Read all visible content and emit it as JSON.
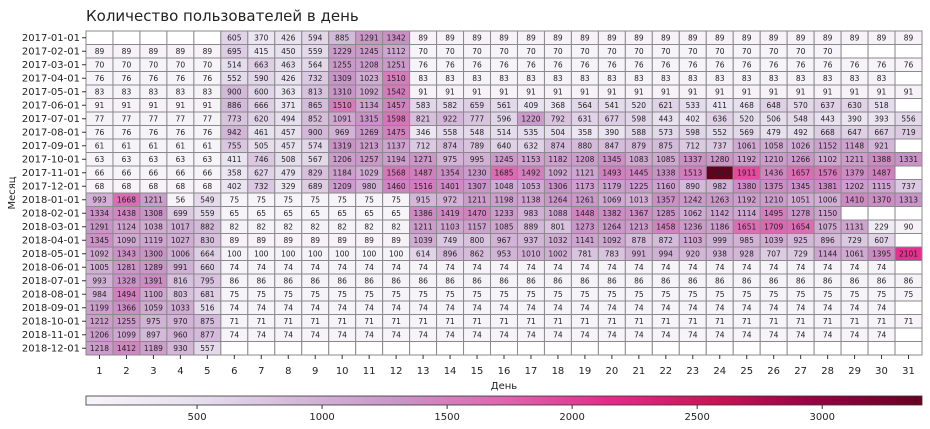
{
  "chart_data": {
    "type": "heatmap",
    "title": "Количество пользователей в день",
    "xlabel": "День",
    "ylabel": "Месяц",
    "x": [
      1,
      2,
      3,
      4,
      5,
      6,
      7,
      8,
      9,
      10,
      11,
      12,
      13,
      14,
      15,
      16,
      17,
      18,
      19,
      20,
      21,
      22,
      23,
      24,
      25,
      26,
      27,
      28,
      29,
      30,
      31
    ],
    "y": [
      "2017-01-01",
      "2017-02-01",
      "2017-03-01",
      "2017-04-01",
      "2017-05-01",
      "2017-06-01",
      "2017-07-01",
      "2017-08-01",
      "2017-09-01",
      "2017-10-01",
      "2017-11-01",
      "2017-12-01",
      "2018-01-01",
      "2018-02-01",
      "2018-03-01",
      "2018-04-01",
      "2018-05-01",
      "2018-06-01",
      "2018-07-01",
      "2018-08-01",
      "2018-09-01",
      "2018-10-01",
      "2018-11-01",
      "2018-12-01"
    ],
    "values": [
      [
        null,
        null,
        null,
        null,
        null,
        605,
        370,
        426,
        594,
        885,
        1291,
        1342,
        89,
        89,
        89,
        89,
        89,
        89,
        89,
        89,
        89,
        89,
        89,
        89,
        89,
        89,
        89,
        89,
        89,
        89,
        89
      ],
      [
        89,
        89,
        89,
        89,
        89,
        695,
        415,
        450,
        559,
        1229,
        1245,
        1112,
        70,
        70,
        70,
        70,
        70,
        70,
        70,
        70,
        70,
        70,
        70,
        70,
        70,
        70,
        70,
        70,
        null,
        null,
        null
      ],
      [
        70,
        70,
        70,
        70,
        70,
        514,
        663,
        463,
        564,
        1255,
        1208,
        1251,
        76,
        76,
        76,
        76,
        76,
        76,
        76,
        76,
        76,
        76,
        76,
        76,
        76,
        76,
        76,
        76,
        76,
        76,
        76
      ],
      [
        76,
        76,
        76,
        76,
        76,
        552,
        590,
        426,
        732,
        1309,
        1023,
        1510,
        83,
        83,
        83,
        83,
        83,
        83,
        83,
        83,
        83,
        83,
        83,
        83,
        83,
        83,
        83,
        83,
        83,
        83,
        null
      ],
      [
        83,
        83,
        83,
        83,
        83,
        900,
        600,
        363,
        813,
        1310,
        1092,
        1542,
        91,
        91,
        91,
        91,
        91,
        91,
        91,
        91,
        91,
        91,
        91,
        91,
        91,
        91,
        91,
        91,
        91,
        91,
        91
      ],
      [
        91,
        91,
        91,
        91,
        91,
        886,
        666,
        371,
        865,
        1510,
        1134,
        1457,
        583,
        582,
        659,
        561,
        409,
        368,
        564,
        541,
        520,
        621,
        533,
        411,
        468,
        648,
        570,
        637,
        630,
        518,
        null
      ],
      [
        77,
        77,
        77,
        77,
        77,
        773,
        620,
        494,
        852,
        1091,
        1315,
        1598,
        821,
        922,
        777,
        596,
        1220,
        792,
        631,
        677,
        598,
        443,
        402,
        636,
        520,
        506,
        548,
        443,
        390,
        393,
        556
      ],
      [
        76,
        76,
        76,
        76,
        76,
        942,
        461,
        457,
        900,
        969,
        1269,
        1475,
        346,
        558,
        548,
        514,
        535,
        504,
        358,
        390,
        588,
        573,
        598,
        552,
        569,
        479,
        492,
        668,
        647,
        667,
        719
      ],
      [
        61,
        61,
        61,
        61,
        61,
        755,
        505,
        457,
        574,
        1319,
        1213,
        1137,
        712,
        874,
        789,
        640,
        632,
        874,
        880,
        847,
        879,
        875,
        712,
        737,
        1061,
        1058,
        1026,
        1152,
        1148,
        921,
        null
      ],
      [
        63,
        63,
        63,
        63,
        63,
        411,
        746,
        508,
        567,
        1206,
        1257,
        1194,
        1271,
        975,
        995,
        1245,
        1153,
        1182,
        1208,
        1345,
        1083,
        1085,
        1337,
        1280,
        1192,
        1210,
        1266,
        1102,
        1211,
        1388,
        1331
      ],
      [
        66,
        66,
        66,
        66,
        66,
        358,
        627,
        479,
        829,
        1184,
        1029,
        1568,
        1487,
        1354,
        1230,
        1685,
        1492,
        1092,
        1121,
        1493,
        1445,
        1338,
        1513,
        3399,
        1911,
        1436,
        1657,
        1576,
        1379,
        1487,
        null
      ],
      [
        68,
        68,
        68,
        68,
        68,
        402,
        732,
        329,
        689,
        1209,
        980,
        1460,
        1516,
        1401,
        1307,
        1048,
        1053,
        1306,
        1173,
        1179,
        1225,
        1160,
        890,
        982,
        1380,
        1375,
        1345,
        1381,
        1202,
        1115,
        737
      ],
      [
        993,
        1668,
        1211,
        56,
        549,
        75,
        75,
        75,
        75,
        75,
        75,
        75,
        915,
        972,
        1211,
        1198,
        1138,
        1264,
        1261,
        1069,
        1013,
        1357,
        1242,
        1263,
        1192,
        1210,
        1051,
        1006,
        1410,
        1370,
        1313
      ],
      [
        1334,
        1438,
        1308,
        699,
        559,
        65,
        65,
        65,
        65,
        65,
        65,
        65,
        1386,
        1419,
        1470,
        1233,
        983,
        1088,
        1448,
        1382,
        1367,
        1285,
        1062,
        1142,
        1114,
        1495,
        1278,
        1150,
        null,
        null,
        null
      ],
      [
        1291,
        1124,
        1038,
        1017,
        882,
        82,
        82,
        82,
        82,
        82,
        82,
        82,
        1211,
        1103,
        1157,
        1085,
        889,
        801,
        1273,
        1264,
        1213,
        1458,
        1236,
        1186,
        1651,
        1709,
        1654,
        1075,
        1131,
        229,
        90
      ],
      [
        1345,
        1090,
        1119,
        1027,
        830,
        89,
        89,
        89,
        89,
        89,
        89,
        89,
        1039,
        749,
        800,
        967,
        937,
        1032,
        1141,
        1092,
        878,
        872,
        1103,
        999,
        985,
        1039,
        925,
        896,
        729,
        607,
        null
      ],
      [
        1092,
        1343,
        1300,
        1006,
        664,
        100,
        100,
        100,
        100,
        100,
        100,
        100,
        614,
        896,
        862,
        953,
        1010,
        1002,
        781,
        783,
        991,
        994,
        920,
        938,
        928,
        707,
        729,
        1144,
        1061,
        1395,
        2101
      ],
      [
        1005,
        1281,
        1289,
        991,
        660,
        74,
        74,
        74,
        74,
        74,
        74,
        74,
        74,
        74,
        74,
        74,
        74,
        74,
        74,
        74,
        74,
        74,
        74,
        74,
        74,
        74,
        74,
        74,
        74,
        74,
        null
      ],
      [
        993,
        1328,
        1391,
        816,
        795,
        86,
        86,
        86,
        86,
        86,
        86,
        86,
        86,
        86,
        86,
        86,
        86,
        86,
        86,
        86,
        86,
        86,
        86,
        86,
        86,
        86,
        86,
        86,
        86,
        86,
        86
      ],
      [
        984,
        1494,
        1100,
        803,
        681,
        75,
        75,
        75,
        75,
        75,
        75,
        75,
        75,
        75,
        75,
        75,
        75,
        75,
        75,
        75,
        75,
        75,
        75,
        75,
        75,
        75,
        75,
        75,
        75,
        75,
        75
      ],
      [
        1199,
        1366,
        1059,
        1033,
        516,
        74,
        74,
        74,
        74,
        74,
        74,
        74,
        74,
        74,
        74,
        74,
        74,
        74,
        74,
        74,
        74,
        74,
        74,
        74,
        74,
        74,
        74,
        74,
        74,
        74,
        null
      ],
      [
        1212,
        1255,
        975,
        970,
        875,
        71,
        71,
        71,
        71,
        71,
        71,
        71,
        71,
        71,
        71,
        71,
        71,
        71,
        71,
        71,
        71,
        71,
        71,
        71,
        71,
        71,
        71,
        71,
        71,
        71,
        71
      ],
      [
        1206,
        1099,
        897,
        960,
        877,
        74,
        74,
        74,
        74,
        74,
        74,
        74,
        74,
        74,
        74,
        74,
        74,
        74,
        74,
        74,
        74,
        74,
        74,
        74,
        74,
        74,
        74,
        74,
        74,
        74,
        null
      ],
      [
        1218,
        1412,
        1189,
        930,
        557,
        null,
        null,
        null,
        null,
        null,
        null,
        null,
        null,
        null,
        null,
        null,
        null,
        null,
        null,
        null,
        null,
        null,
        null,
        null,
        null,
        null,
        null,
        null,
        null,
        null,
        null
      ]
    ],
    "colormap": [
      "#f7f4f9",
      "#e7e1ef",
      "#d4b9da",
      "#c994c7",
      "#df65b0",
      "#e7298a",
      "#ce1256",
      "#980043",
      "#67001f"
    ],
    "clim": [
      56,
      3399
    ],
    "cticks": [
      500,
      1000,
      1500,
      2000,
      2500,
      3000
    ]
  }
}
